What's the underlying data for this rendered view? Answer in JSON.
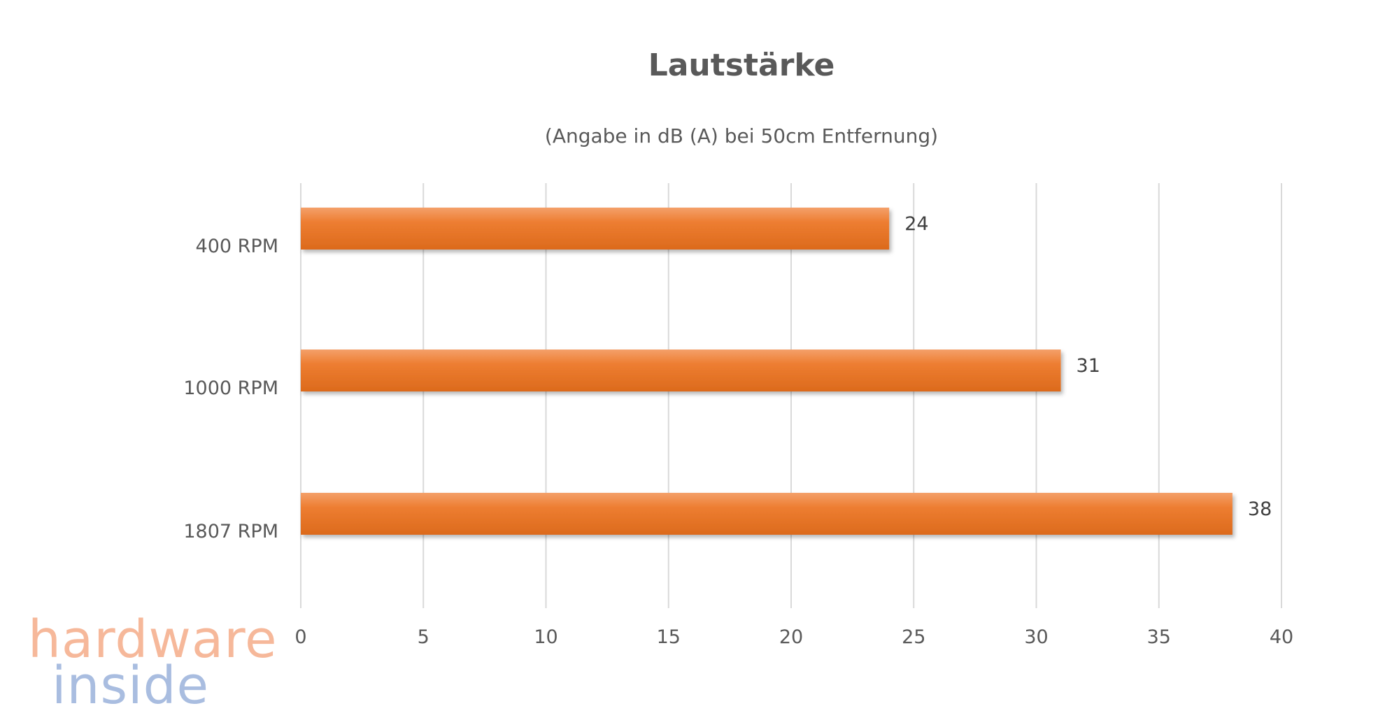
{
  "chart_data": {
    "type": "bar",
    "orientation": "horizontal",
    "title": "Lautstärke",
    "subtitle": "(Angabe in dB (A) bei 50cm Entfernung)",
    "categories": [
      "400 RPM",
      "1000 RPM",
      "1807 RPM"
    ],
    "values": [
      24,
      31,
      38
    ],
    "xlim": [
      0,
      40
    ],
    "xticks": [
      0,
      5,
      10,
      15,
      20,
      25,
      30,
      35,
      40
    ],
    "xlabel": "",
    "ylabel": "",
    "grid": true,
    "legend": "none",
    "data_labels": true
  },
  "colors": {
    "bar_light": "#f4a06a",
    "bar_main": "#ed7d31",
    "bar_dark": "#dc6a1c",
    "text": "#595959",
    "grid": "#d9d9d9",
    "logo_hardware": "#f6b89a",
    "logo_inside": "#a9bde0"
  },
  "watermark": {
    "line1": "hardware",
    "line2": "inside"
  }
}
